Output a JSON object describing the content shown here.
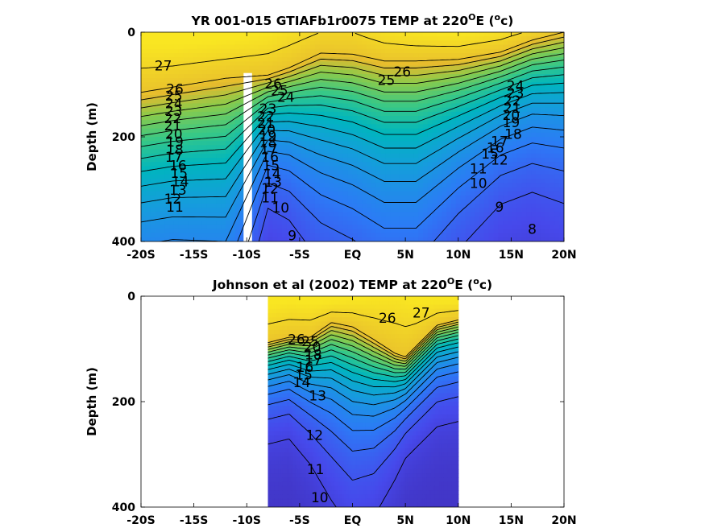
{
  "chart_data": [
    {
      "type": "heatmap",
      "title_parts": {
        "pre": "YR 001-015 GTIAFb1r0075 TEMP at 220",
        "sup1": "O",
        "mid": "E (",
        "sup2": "o",
        "post": "c)"
      },
      "xlabel": "",
      "ylabel": "Depth (m)",
      "xlim": [
        -20,
        20
      ],
      "ylim": [
        400,
        0
      ],
      "x_ticks": [
        {
          "value": -20,
          "label": "-20S"
        },
        {
          "value": -15,
          "label": "-15S"
        },
        {
          "value": -10,
          "label": "-10S"
        },
        {
          "value": -5,
          "label": "-5S"
        },
        {
          "value": 0,
          "label": "EQ"
        },
        {
          "value": 5,
          "label": "5N"
        },
        {
          "value": 10,
          "label": "10N"
        },
        {
          "value": 15,
          "label": "15N"
        },
        {
          "value": 20,
          "label": "20N"
        }
      ],
      "y_ticks": [
        {
          "value": 0,
          "label": "0"
        },
        {
          "value": 200,
          "label": "200"
        },
        {
          "value": 400,
          "label": "400"
        }
      ],
      "data_extent": [
        -20,
        20
      ],
      "missing_strip": [
        -10.3,
        -9.5,
        78
      ],
      "profiles": [
        {
          "lat": -20,
          "t0": 28.5,
          "depth26": 115,
          "dz": 14
        },
        {
          "lat": -17,
          "t0": 28.6,
          "depth26": 105,
          "dz": 14
        },
        {
          "lat": -12,
          "t0": 28.4,
          "depth26": 88,
          "dz": 15
        },
        {
          "lat": -8,
          "t0": 28.0,
          "depth26": 82,
          "dz": 7
        },
        {
          "lat": -6,
          "t0": 27.6,
          "depth26": 68,
          "dz": 8
        },
        {
          "lat": -3,
          "t0": 27.0,
          "depth26": 40,
          "dz": 11
        },
        {
          "lat": 0,
          "t0": 27.0,
          "depth26": 42,
          "dz": 12
        },
        {
          "lat": 3,
          "t0": 27.6,
          "depth26": 55,
          "dz": 13
        },
        {
          "lat": 6,
          "t0": 27.9,
          "depth26": 55,
          "dz": 13
        },
        {
          "lat": 10,
          "t0": 28.1,
          "depth26": 52,
          "dz": 10
        },
        {
          "lat": 14,
          "t0": 27.6,
          "depth26": 38,
          "dz": 8
        },
        {
          "lat": 17,
          "t0": 26.8,
          "depth26": 15,
          "dz": 8
        },
        {
          "lat": 20,
          "t0": 26.2,
          "depth26": 0,
          "dz": 9
        }
      ],
      "contour_levels": [
        8,
        9,
        10,
        11,
        12,
        13,
        14,
        15,
        16,
        17,
        18,
        19,
        20,
        21,
        22,
        23,
        24,
        25,
        26,
        27
      ],
      "contour_labels": [
        {
          "text": "27",
          "x": -17.9,
          "y": 65
        },
        {
          "text": "26",
          "x": -16.8,
          "y": 110
        },
        {
          "text": "25",
          "x": -16.9,
          "y": 123
        },
        {
          "text": "24",
          "x": -16.9,
          "y": 138
        },
        {
          "text": "23",
          "x": -16.9,
          "y": 152
        },
        {
          "text": "22",
          "x": -17.0,
          "y": 166
        },
        {
          "text": "21",
          "x": -17.0,
          "y": 180
        },
        {
          "text": "20",
          "x": -16.9,
          "y": 196
        },
        {
          "text": "19",
          "x": -16.8,
          "y": 211
        },
        {
          "text": "18",
          "x": -16.8,
          "y": 226
        },
        {
          "text": "17",
          "x": -16.9,
          "y": 240
        },
        {
          "text": "16",
          "x": -16.5,
          "y": 256
        },
        {
          "text": "15",
          "x": -16.4,
          "y": 271
        },
        {
          "text": "14",
          "x": -16.3,
          "y": 287
        },
        {
          "text": "13",
          "x": -16.5,
          "y": 303
        },
        {
          "text": "12",
          "x": -17.0,
          "y": 320
        },
        {
          "text": "11",
          "x": -16.8,
          "y": 335
        },
        {
          "text": "26",
          "x": -7.5,
          "y": 100
        },
        {
          "text": "25",
          "x": -6.9,
          "y": 113
        },
        {
          "text": "24",
          "x": -6.3,
          "y": 125
        },
        {
          "text": "23",
          "x": -8.0,
          "y": 148
        },
        {
          "text": "22",
          "x": -8.2,
          "y": 162
        },
        {
          "text": "21",
          "x": -8.2,
          "y": 175
        },
        {
          "text": "20",
          "x": -8.1,
          "y": 188
        },
        {
          "text": "19",
          "x": -8.0,
          "y": 200
        },
        {
          "text": "18",
          "x": -8.0,
          "y": 212
        },
        {
          "text": "17",
          "x": -7.9,
          "y": 225
        },
        {
          "text": "16",
          "x": -7.8,
          "y": 240
        },
        {
          "text": "15",
          "x": -7.7,
          "y": 256
        },
        {
          "text": "14",
          "x": -7.6,
          "y": 272
        },
        {
          "text": "13",
          "x": -7.5,
          "y": 288
        },
        {
          "text": "12",
          "x": -7.8,
          "y": 300
        },
        {
          "text": "11",
          "x": -7.8,
          "y": 318
        },
        {
          "text": "10",
          "x": -6.8,
          "y": 337
        },
        {
          "text": "9",
          "x": -5.7,
          "y": 390
        },
        {
          "text": "26",
          "x": 4.7,
          "y": 77
        },
        {
          "text": "25",
          "x": 3.2,
          "y": 93
        },
        {
          "text": "24",
          "x": 15.4,
          "y": 104
        },
        {
          "text": "23",
          "x": 15.4,
          "y": 118
        },
        {
          "text": "22",
          "x": 15.1,
          "y": 132
        },
        {
          "text": "21",
          "x": 15.1,
          "y": 146
        },
        {
          "text": "20",
          "x": 15.0,
          "y": 160
        },
        {
          "text": "19",
          "x": 15.0,
          "y": 174
        },
        {
          "text": "18",
          "x": 15.2,
          "y": 196
        },
        {
          "text": "17",
          "x": 13.9,
          "y": 210
        },
        {
          "text": "16",
          "x": 13.5,
          "y": 222
        },
        {
          "text": "15",
          "x": 13.0,
          "y": 234
        },
        {
          "text": "12",
          "x": 13.9,
          "y": 245
        },
        {
          "text": "11",
          "x": 11.9,
          "y": 262
        },
        {
          "text": "10",
          "x": 11.9,
          "y": 290
        },
        {
          "text": "9",
          "x": 13.9,
          "y": 335
        },
        {
          "text": "8",
          "x": 17.0,
          "y": 378
        }
      ]
    },
    {
      "type": "heatmap",
      "title_parts": {
        "pre": "Johnson et al (2002) TEMP at 220",
        "sup1": "O",
        "mid": "E (",
        "sup2": "o",
        "post": "c)"
      },
      "xlabel": "",
      "ylabel": "Depth (m)",
      "xlim": [
        -20,
        20
      ],
      "ylim": [
        400,
        0
      ],
      "x_ticks": [
        {
          "value": -20,
          "label": "-20S"
        },
        {
          "value": -15,
          "label": "-15S"
        },
        {
          "value": -10,
          "label": "-10S"
        },
        {
          "value": -5,
          "label": "-5S"
        },
        {
          "value": 0,
          "label": "EQ"
        },
        {
          "value": 5,
          "label": "5N"
        },
        {
          "value": 10,
          "label": "10N"
        },
        {
          "value": 15,
          "label": "15N"
        },
        {
          "value": 20,
          "label": "20N"
        }
      ],
      "y_ticks": [
        {
          "value": 0,
          "label": "0"
        },
        {
          "value": 200,
          "label": "200"
        },
        {
          "value": 400,
          "label": "400"
        }
      ],
      "data_extent": [
        -8,
        10
      ],
      "profiles": [
        {
          "lat": -8,
          "t0": 28.5,
          "depth26": 88,
          "dz": 4
        },
        {
          "lat": -6,
          "t0": 28.3,
          "depth26": 78,
          "dz": 4
        },
        {
          "lat": -4,
          "t0": 28.4,
          "depth26": 78,
          "dz": 5
        },
        {
          "lat": -2,
          "t0": 28.5,
          "depth26": 50,
          "dz": 7
        },
        {
          "lat": 0,
          "t0": 28.2,
          "depth26": 58,
          "dz": 8
        },
        {
          "lat": 2,
          "t0": 28.0,
          "depth26": 82,
          "dz": 7
        },
        {
          "lat": 4,
          "t0": 27.9,
          "depth26": 108,
          "dz": 5
        },
        {
          "lat": 5,
          "t0": 28.0,
          "depth26": 115,
          "dz": 4
        },
        {
          "lat": 6,
          "t0": 28.2,
          "depth26": 95,
          "dz": 4
        },
        {
          "lat": 8,
          "t0": 28.4,
          "depth26": 55,
          "dz": 4
        },
        {
          "lat": 10,
          "t0": 28.5,
          "depth26": 45,
          "dz": 4
        }
      ],
      "contour_levels": [
        10,
        11,
        12,
        13,
        14,
        15,
        16,
        17,
        18,
        19,
        20,
        21,
        22,
        23,
        24,
        25,
        26,
        27
      ],
      "contour_labels": [
        {
          "text": "27",
          "x": 6.5,
          "y": 33
        },
        {
          "text": "26",
          "x": 3.3,
          "y": 43
        },
        {
          "text": "26",
          "x": -5.3,
          "y": 83
        },
        {
          "text": "25",
          "x": -4.0,
          "y": 87
        },
        {
          "text": "20",
          "x": -3.8,
          "y": 98
        },
        {
          "text": "18",
          "x": -3.7,
          "y": 112
        },
        {
          "text": "17",
          "x": -3.7,
          "y": 122
        },
        {
          "text": "16",
          "x": -4.5,
          "y": 136
        },
        {
          "text": "15",
          "x": -4.6,
          "y": 150
        },
        {
          "text": "14",
          "x": -4.8,
          "y": 165
        },
        {
          "text": "13",
          "x": -3.3,
          "y": 190
        },
        {
          "text": "12",
          "x": -3.6,
          "y": 265
        },
        {
          "text": "11",
          "x": -3.5,
          "y": 330
        },
        {
          "text": "10",
          "x": -3.1,
          "y": 383
        }
      ]
    }
  ]
}
